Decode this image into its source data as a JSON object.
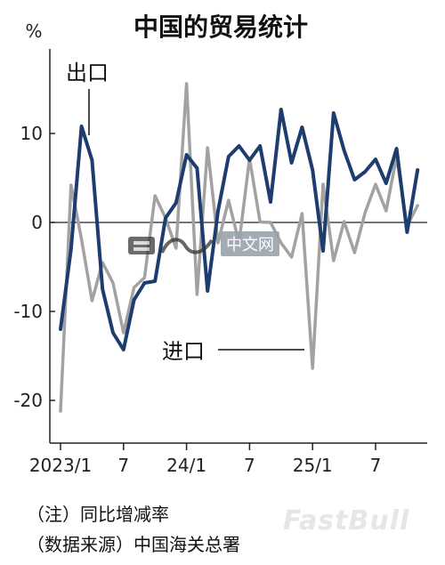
{
  "chart_data": {
    "type": "line",
    "title": "中国的贸易统计",
    "unit": "%",
    "ylim": [
      -25,
      18
    ],
    "yticks": [
      10,
      0,
      -10,
      -20
    ],
    "x_labels": [
      {
        "index": 0,
        "label": "2023/1"
      },
      {
        "index": 6,
        "label": "7"
      },
      {
        "index": 12,
        "label": "24/1"
      },
      {
        "index": 18,
        "label": "7"
      },
      {
        "index": 24,
        "label": "25/1"
      },
      {
        "index": 30,
        "label": "7"
      }
    ],
    "series": [
      {
        "name": "出口",
        "color": "#1d3d6e",
        "values": [
          -12,
          -3,
          10.8,
          7,
          -7.5,
          -12.4,
          -14.3,
          -8.7,
          -6.8,
          -6.6,
          0.5,
          2.2,
          7.6,
          6.1,
          -7.7,
          1.3,
          7.4,
          8.6,
          7,
          8.6,
          2.3,
          12.7,
          6.7,
          10.7,
          5.9,
          -3.2,
          12.3,
          8.1,
          4.8,
          5.7,
          7.1,
          4.4,
          8.3,
          -1.1,
          5.9
        ]
      },
      {
        "name": "进口",
        "color": "#a2a2a2",
        "values": [
          -21.2,
          4.2,
          -1.9,
          -8.8,
          -4.5,
          -6.8,
          -12.4,
          -7.3,
          -6.2,
          3,
          0.5,
          -2.9,
          15.6,
          -8.1,
          8.4,
          -2.3,
          2.5,
          -2.3,
          7.2,
          0.05,
          0,
          -2.3,
          -3.9,
          1,
          -16.4,
          4.3,
          -4.3,
          0.1,
          -3.4,
          1.1,
          4.3,
          1.3,
          7.4,
          -0.4,
          1.9
        ]
      }
    ],
    "annotations": [
      {
        "text": "出口",
        "series": "出口"
      },
      {
        "text": "进口",
        "series": "进口"
      }
    ]
  },
  "notes": {
    "line1": "（注）同比增减率",
    "line2": "（数据来源）中国海关总署"
  },
  "watermarks": {
    "nikkei": "日经",
    "chinese_web": "中文网",
    "fastbull": "FastBull"
  }
}
